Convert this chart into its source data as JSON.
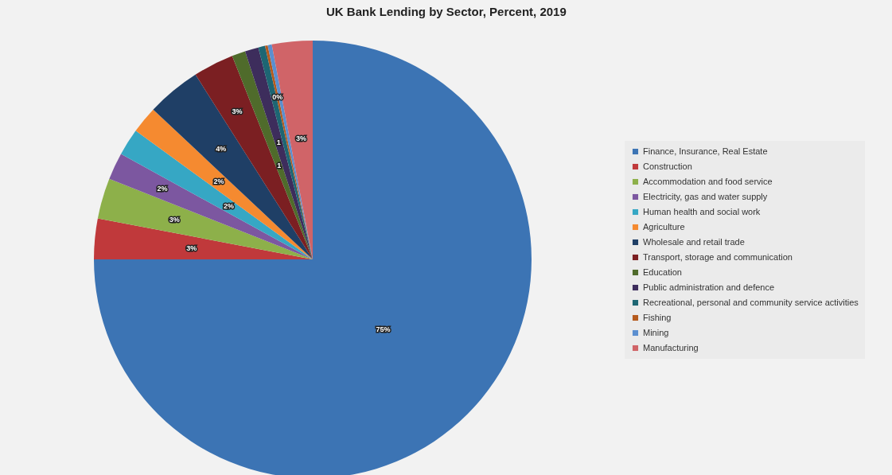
{
  "chart_data": {
    "type": "pie",
    "title": "UK Bank Lending by Sector, Percent, 2019",
    "categories": [
      "Finance, Insurance, Real Estate",
      "Construction",
      "Accommodation and food service",
      "Electricity, gas and water supply",
      "Human health and social work",
      "Agriculture",
      "Wholesale and retail trade",
      "Transport, storage and communication",
      "Education",
      "Public administration and defence",
      "Recreational, personal and community service activities",
      "Fishing",
      "Mining",
      "Manufacturing"
    ],
    "values": [
      75,
      3,
      3,
      2,
      2,
      2,
      4,
      3,
      1,
      1,
      0.5,
      0.2,
      0.3,
      3
    ],
    "colors": [
      "#3c74b4",
      "#c0393b",
      "#8db04a",
      "#7c57a0",
      "#36a7c4",
      "#f58a30",
      "#1f3f66",
      "#7b1f22",
      "#4f6b2b",
      "#3d2d5c",
      "#1d6673",
      "#b55a1d",
      "#5b8fd0",
      "#d06468"
    ],
    "value_labels": [
      "75%",
      "3%",
      "3%",
      "2%",
      "2%",
      "2%",
      "4%",
      "3%",
      "1",
      "1",
      null,
      "0%",
      null,
      "3%"
    ],
    "legend": "right"
  }
}
